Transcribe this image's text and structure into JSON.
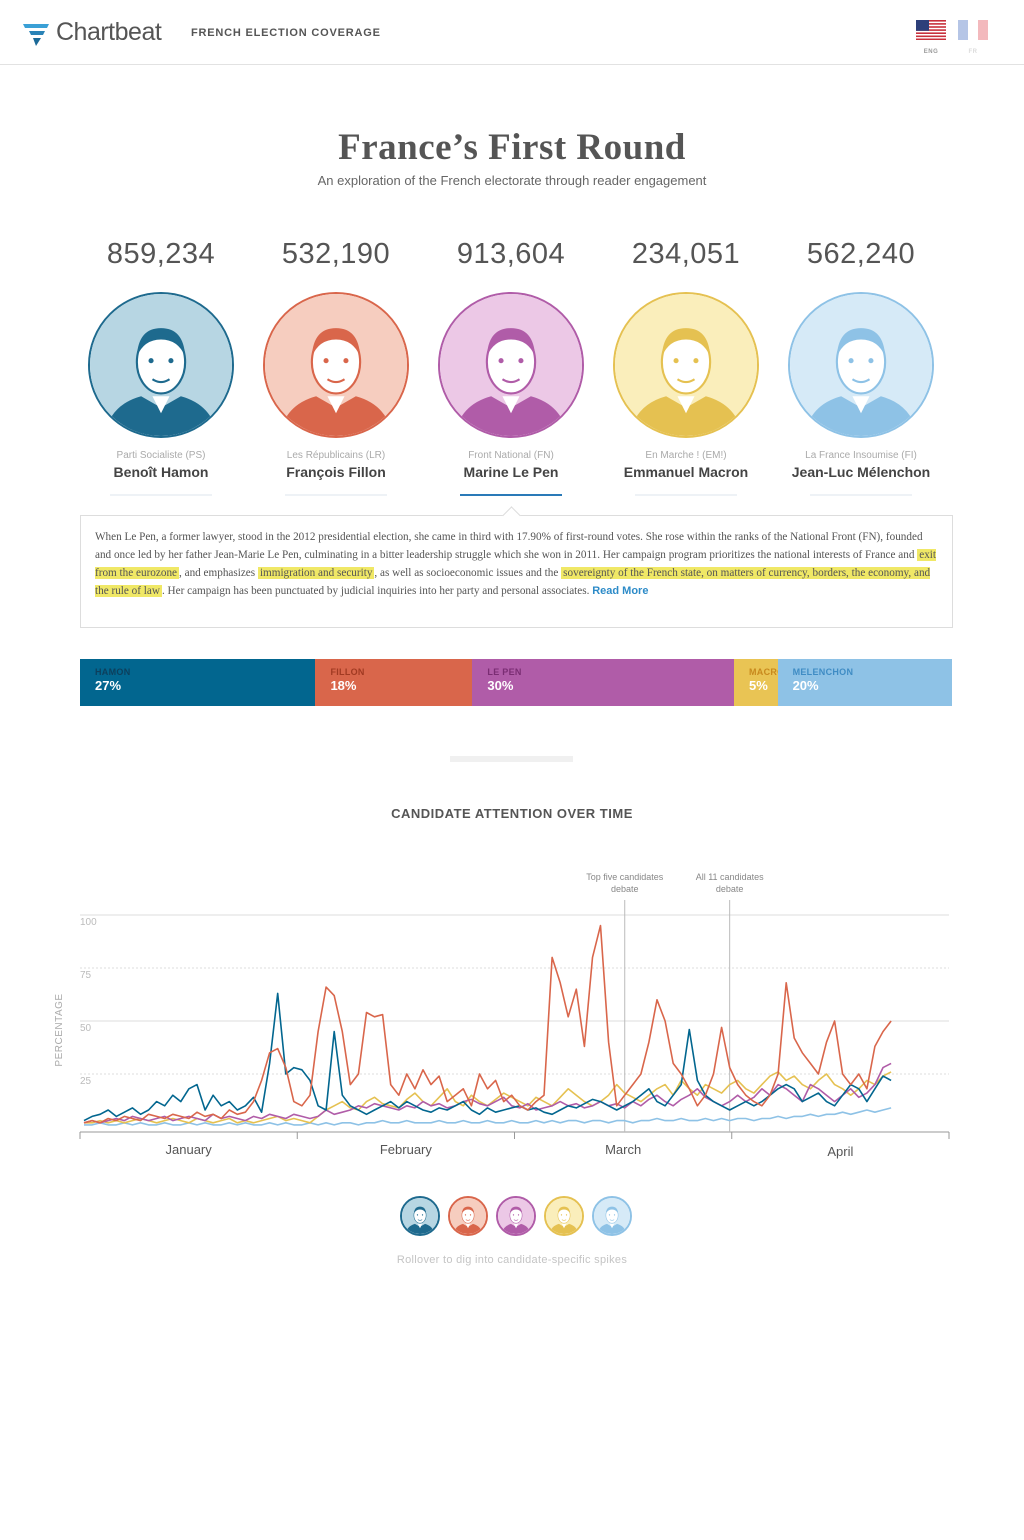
{
  "header": {
    "brand": "Chartbeat",
    "section": "FRENCH ELECTION COVERAGE",
    "languages": [
      {
        "code": "ENG",
        "icon": "us-flag-icon",
        "active": true
      },
      {
        "code": "FR",
        "icon": "france-flag-icon",
        "active": false
      }
    ]
  },
  "page": {
    "title": "France’s First Round",
    "subtitle": "An exploration of the French electorate through reader engagement"
  },
  "candidates": [
    {
      "count": "859,234",
      "party": "Parti Socialiste (PS)",
      "name": "Benoît Hamon",
      "color": "#1e6a8e",
      "light": "#b7d6e3"
    },
    {
      "count": "532,190",
      "party": "Les Républicains (LR)",
      "name": "François Fillon",
      "color": "#d9664b",
      "light": "#f6cdbf"
    },
    {
      "count": "913,604",
      "party": "Front National (FN)",
      "name": "Marine Le Pen",
      "color": "#b05ca8",
      "light": "#ecc8e6"
    },
    {
      "count": "234,051",
      "party": "En Marche ! (EM!)",
      "name": "Emmanuel Macron",
      "color": "#e5c151",
      "light": "#faeebb"
    },
    {
      "count": "562,240",
      "party": "La France Insoumise (FI)",
      "name": "Jean-Luc Mélenchon",
      "color": "#8ec2e6",
      "light": "#d6eaf7"
    }
  ],
  "info": {
    "p1": "When Le Pen, a former lawyer, stood in the 2012 presidential election, she came in third with 17.90% of first-round votes. She rose within the ranks of the National Front (FN), founded and once led by her father Jean-Marie Le Pen, culminating in a bitter leadership struggle which she won in 2011. Her campaign program prioritizes the national interests of France and ",
    "h1": "exit from the eurozone",
    "p2": ", and emphasizes ",
    "h2": "immigration and security",
    "p3": ", as well as socioeconomic issues and the ",
    "h3": "sovereignty of the French state, on matters of currency, borders, the economy, and the rule of law",
    "p4": ". Her campaign has been punctuated by judicial inquiries into her party and personal associates. ",
    "read_more": "Read More"
  },
  "share": [
    {
      "name": "HAMON",
      "pct": "27%",
      "value": 27,
      "color": "#02668f",
      "label_color": "#0d3f5c"
    },
    {
      "name": "FILLON",
      "pct": "18%",
      "value": 18,
      "color": "#d9664b",
      "label_color": "#a13a22"
    },
    {
      "name": "LE PEN",
      "pct": "30%",
      "value": 30,
      "color": "#b05ca8",
      "label_color": "#7a2d73"
    },
    {
      "name": "MACRON",
      "pct": "5%",
      "value": 5,
      "color": "#e9c454",
      "label_color": "#c8891d"
    },
    {
      "name": "MELENCHON",
      "pct": "20%",
      "value": 20,
      "color": "#8ec2e6",
      "label_color": "#3f8cc4"
    }
  ],
  "chart_title": "CANDIDATE ATTENTION OVER TIME",
  "chart_data": {
    "type": "line",
    "ylabel": "PERCENTAGE",
    "ylim": [
      0,
      100
    ],
    "yticks": [
      25,
      50,
      75,
      100
    ],
    "months": [
      "January",
      "February",
      "March",
      "April"
    ],
    "annotations": [
      {
        "label_line1": "Top five candidates",
        "label_line2": "debate",
        "x": 67
      },
      {
        "label_line1": "All 11 candidates",
        "label_line2": "debate",
        "x": 80
      }
    ],
    "x_count": 100,
    "series": [
      {
        "name": "Fillon",
        "color": "#d9664b",
        "values": [
          2,
          3,
          2,
          4,
          3,
          5,
          4,
          3,
          6,
          5,
          4,
          6,
          5,
          4,
          7,
          5,
          6,
          4,
          8,
          6,
          7,
          12,
          22,
          35,
          37,
          28,
          12,
          10,
          15,
          45,
          66,
          62,
          45,
          20,
          25,
          54,
          52,
          53,
          20,
          15,
          25,
          18,
          27,
          20,
          24,
          12,
          15,
          18,
          10,
          25,
          18,
          22,
          12,
          15,
          10,
          8,
          12,
          15,
          80,
          68,
          52,
          65,
          38,
          80,
          95,
          40,
          10,
          15,
          20,
          25,
          40,
          60,
          50,
          30,
          25,
          18,
          10,
          15,
          25,
          47,
          28,
          20,
          15,
          12,
          10,
          15,
          25,
          68,
          42,
          35,
          30,
          25,
          40,
          50,
          25,
          20,
          25,
          18,
          38,
          45,
          50
        ]
      },
      {
        "name": "Hamon",
        "color": "#02668f",
        "values": [
          3,
          5,
          6,
          8,
          5,
          7,
          9,
          6,
          8,
          12,
          10,
          15,
          12,
          18,
          20,
          8,
          15,
          10,
          12,
          8,
          10,
          14,
          7,
          30,
          63,
          25,
          28,
          27,
          22,
          10,
          8,
          45,
          15,
          10,
          8,
          6,
          8,
          10,
          12,
          9,
          12,
          10,
          8,
          7,
          9,
          8,
          10,
          12,
          8,
          6,
          9,
          7,
          8,
          9,
          10,
          8,
          9,
          7,
          6,
          8,
          10,
          9,
          11,
          13,
          12,
          10,
          8,
          10,
          12,
          15,
          18,
          12,
          10,
          15,
          20,
          46,
          22,
          15,
          12,
          10,
          8,
          10,
          12,
          10,
          12,
          15,
          18,
          20,
          18,
          12,
          14,
          16,
          12,
          10,
          15,
          20,
          18,
          12,
          18,
          24,
          22
        ]
      },
      {
        "name": "Le Pen",
        "color": "#b05ca8",
        "values": [
          2,
          3,
          2,
          3,
          4,
          3,
          5,
          4,
          3,
          4,
          5,
          3,
          4,
          5,
          4,
          3,
          6,
          4,
          5,
          4,
          3,
          5,
          4,
          6,
          5,
          4,
          6,
          5,
          4,
          5,
          8,
          6,
          7,
          8,
          10,
          9,
          11,
          10,
          9,
          8,
          10,
          9,
          12,
          10,
          11,
          9,
          10,
          12,
          13,
          11,
          10,
          12,
          14,
          10,
          9,
          11,
          8,
          9,
          10,
          12,
          10,
          11,
          9,
          10,
          12,
          10,
          11,
          9,
          12,
          10,
          13,
          15,
          12,
          10,
          13,
          15,
          18,
          14,
          12,
          10,
          12,
          15,
          12,
          14,
          18,
          15,
          20,
          18,
          15,
          12,
          20,
          18,
          15,
          12,
          15,
          18,
          14,
          16,
          20,
          28,
          30
        ]
      },
      {
        "name": "Macron",
        "color": "#e5c151",
        "values": [
          2,
          2,
          3,
          2,
          3,
          2,
          3,
          4,
          3,
          2,
          3,
          4,
          3,
          2,
          4,
          3,
          2,
          3,
          4,
          2,
          3,
          2,
          3,
          4,
          5,
          3,
          4,
          3,
          2,
          5,
          8,
          10,
          12,
          9,
          8,
          12,
          14,
          11,
          10,
          9,
          13,
          16,
          12,
          10,
          14,
          18,
          12,
          10,
          15,
          12,
          10,
          13,
          16,
          14,
          12,
          10,
          14,
          12,
          10,
          14,
          18,
          15,
          12,
          10,
          12,
          15,
          20,
          16,
          14,
          12,
          15,
          18,
          20,
          15,
          22,
          18,
          15,
          20,
          18,
          16,
          20,
          22,
          18,
          16,
          20,
          24,
          26,
          22,
          24,
          20,
          18,
          22,
          25,
          20,
          18,
          15,
          18,
          22,
          20,
          24,
          26
        ]
      },
      {
        "name": "Mélenchon",
        "color": "#8ec2e6",
        "values": [
          1,
          1,
          2,
          1,
          1,
          2,
          1,
          2,
          1,
          1,
          2,
          1,
          1,
          2,
          1,
          2,
          1,
          1,
          2,
          1,
          2,
          1,
          1,
          2,
          1,
          2,
          1,
          1,
          2,
          1,
          2,
          1,
          2,
          2,
          1,
          2,
          2,
          3,
          2,
          2,
          3,
          2,
          2,
          2,
          3,
          2,
          2,
          3,
          2,
          2,
          3,
          2,
          2,
          3,
          2,
          2,
          3,
          2,
          3,
          2,
          3,
          3,
          2,
          3,
          3,
          2,
          3,
          3,
          2,
          3,
          3,
          4,
          3,
          3,
          4,
          3,
          3,
          4,
          3,
          4,
          3,
          4,
          4,
          3,
          4,
          4,
          5,
          4,
          5,
          5,
          6,
          5,
          6,
          6,
          7,
          6,
          7,
          8,
          7,
          8,
          9
        ]
      }
    ]
  },
  "hint": "Rollover to dig into candidate-specific spikes"
}
